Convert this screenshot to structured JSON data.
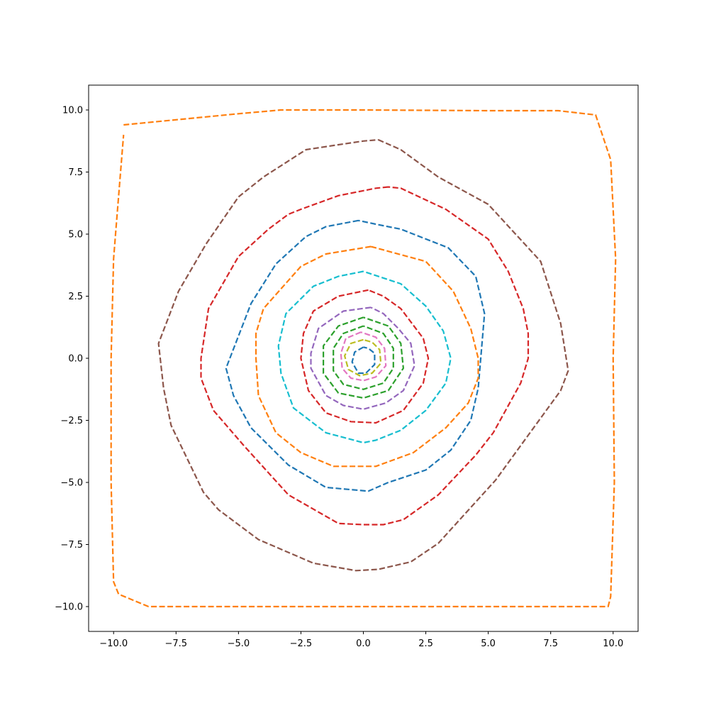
{
  "chart_data": {
    "type": "line",
    "title": "",
    "xlabel": "",
    "ylabel": "",
    "xlim": [
      -11,
      11
    ],
    "ylim": [
      -11,
      11
    ],
    "grid": false,
    "legend": "none",
    "line_style": "dashed",
    "x_ticks": [
      {
        "value": -10,
        "label": "−10.0"
      },
      {
        "value": -7.5,
        "label": "−7.5"
      },
      {
        "value": -5,
        "label": "−5.0"
      },
      {
        "value": -2.5,
        "label": "−2.5"
      },
      {
        "value": 0,
        "label": "0.0"
      },
      {
        "value": 2.5,
        "label": "2.5"
      },
      {
        "value": 5,
        "label": "5.0"
      },
      {
        "value": 7.5,
        "label": "7.5"
      },
      {
        "value": 10,
        "label": "10.0"
      }
    ],
    "y_ticks": [
      {
        "value": 10,
        "label": "10.0"
      },
      {
        "value": 7.5,
        "label": "7.5"
      },
      {
        "value": 5,
        "label": "5.0"
      },
      {
        "value": 2.5,
        "label": "2.5"
      },
      {
        "value": 0,
        "label": "0.0"
      },
      {
        "value": -2.5,
        "label": "−2.5"
      },
      {
        "value": -5,
        "label": "−5.0"
      },
      {
        "value": -7.5,
        "label": "−7.5"
      },
      {
        "value": -10,
        "label": "−10.0"
      }
    ],
    "series": [
      {
        "color": "#ff7f0e",
        "points": [
          [
            -9.6,
            9.4
          ],
          [
            -5,
            9.85
          ],
          [
            -3.3,
            10
          ],
          [
            0,
            10
          ],
          [
            5,
            9.97
          ],
          [
            7.8,
            9.97
          ],
          [
            9.3,
            9.8
          ],
          [
            9.9,
            8
          ],
          [
            10.1,
            4
          ],
          [
            10,
            0
          ],
          [
            10.05,
            -5
          ],
          [
            9.9,
            -9.6
          ],
          [
            9.8,
            -10
          ],
          [
            5,
            -10
          ],
          [
            0,
            -10
          ],
          [
            -5,
            -10
          ],
          [
            -8.6,
            -10
          ],
          [
            -9.8,
            -9.5
          ],
          [
            -10,
            -9
          ],
          [
            -10.1,
            -5
          ],
          [
            -10.1,
            0
          ],
          [
            -10,
            4
          ],
          [
            -9.9,
            5.3
          ],
          [
            -9.6,
            9
          ]
        ]
      },
      {
        "color": "#8c564b",
        "points": [
          [
            0.6,
            8.8
          ],
          [
            1.5,
            8.4
          ],
          [
            3,
            7.3
          ],
          [
            5,
            6.2
          ],
          [
            7.1,
            3.9
          ],
          [
            7.9,
            1.4
          ],
          [
            8.2,
            -0.5
          ],
          [
            7.9,
            -1.3
          ],
          [
            5.3,
            -4.9
          ],
          [
            3,
            -7.45
          ],
          [
            1.9,
            -8.2
          ],
          [
            0.6,
            -8.5
          ],
          [
            -0.3,
            -8.55
          ],
          [
            -2,
            -8.25
          ],
          [
            -4.2,
            -7.3
          ],
          [
            -5.8,
            -6.1
          ],
          [
            -6.4,
            -5.4
          ],
          [
            -7.7,
            -2.7
          ],
          [
            -8,
            -1.2
          ],
          [
            -8.2,
            0.6
          ],
          [
            -7.4,
            2.7
          ],
          [
            -6.3,
            4.6
          ],
          [
            -5,
            6.5
          ],
          [
            -4,
            7.3
          ],
          [
            -2.3,
            8.4
          ],
          [
            -1,
            8.6
          ],
          [
            0,
            8.75
          ],
          [
            0.6,
            8.8
          ]
        ]
      },
      {
        "color": "#d62728",
        "points": [
          [
            1,
            6.9
          ],
          [
            0.5,
            6.85
          ],
          [
            -1,
            6.55
          ],
          [
            -2.5,
            6
          ],
          [
            -3,
            5.8
          ],
          [
            -3.8,
            5.2
          ],
          [
            -5,
            4.1
          ],
          [
            -6.2,
            2
          ],
          [
            -6.5,
            0
          ],
          [
            -6.5,
            -0.8
          ],
          [
            -6,
            -2.1
          ],
          [
            -4.8,
            -3.5
          ],
          [
            -3,
            -5.5
          ],
          [
            -1,
            -6.65
          ],
          [
            0,
            -6.7
          ],
          [
            0.8,
            -6.7
          ],
          [
            1.6,
            -6.5
          ],
          [
            3,
            -5.5
          ],
          [
            4.5,
            -3.9
          ],
          [
            5.2,
            -3
          ],
          [
            6.3,
            -1
          ],
          [
            6.6,
            0
          ],
          [
            6.6,
            1
          ],
          [
            6.4,
            2
          ],
          [
            5.8,
            3.5
          ],
          [
            5,
            4.8
          ],
          [
            3.3,
            6
          ],
          [
            1.5,
            6.85
          ],
          [
            1,
            6.9
          ]
        ]
      },
      {
        "color": "#1f77b4",
        "points": [
          [
            -0.2,
            5.55
          ],
          [
            -1.5,
            5.3
          ],
          [
            -2.3,
            4.9
          ],
          [
            -3.5,
            3.8
          ],
          [
            -4.5,
            2.2
          ],
          [
            -5.5,
            -0.4
          ],
          [
            -5.2,
            -1.5
          ],
          [
            -4.5,
            -2.8
          ],
          [
            -3,
            -4.3
          ],
          [
            -1.5,
            -5.2
          ],
          [
            0.2,
            -5.35
          ],
          [
            1,
            -5
          ],
          [
            2.5,
            -4.5
          ],
          [
            3.5,
            -3.7
          ],
          [
            4.3,
            -2.5
          ],
          [
            4.6,
            -1.2
          ],
          [
            4.85,
            1.8
          ],
          [
            4.5,
            3.3
          ],
          [
            3.4,
            4.45
          ],
          [
            1.5,
            5.2
          ],
          [
            0.5,
            5.4
          ],
          [
            -0.2,
            5.55
          ]
        ]
      },
      {
        "color": "#ff7f0e",
        "points": [
          [
            0.3,
            4.5
          ],
          [
            -1.5,
            4.2
          ],
          [
            -2.5,
            3.7
          ],
          [
            -4,
            2
          ],
          [
            -4.3,
            1
          ],
          [
            -4.3,
            0
          ],
          [
            -4.2,
            -1.5
          ],
          [
            -3.5,
            -3
          ],
          [
            -2.5,
            -3.8
          ],
          [
            -1.2,
            -4.35
          ],
          [
            0.5,
            -4.35
          ],
          [
            2,
            -3.8
          ],
          [
            3.3,
            -2.8
          ],
          [
            4.2,
            -1.8
          ],
          [
            4.6,
            -0.8
          ],
          [
            4.6,
            0
          ],
          [
            4.3,
            1.2
          ],
          [
            3.6,
            2.7
          ],
          [
            2.5,
            3.9
          ],
          [
            0.3,
            4.5
          ]
        ]
      },
      {
        "color": "#17becf",
        "points": [
          [
            0,
            3.5
          ],
          [
            -1,
            3.3
          ],
          [
            -2,
            2.9
          ],
          [
            -3.1,
            1.8
          ],
          [
            -3.4,
            0.5
          ],
          [
            -3.3,
            -0.6
          ],
          [
            -2.8,
            -2
          ],
          [
            -1.5,
            -3
          ],
          [
            0,
            -3.4
          ],
          [
            0.5,
            -3.3
          ],
          [
            1.5,
            -2.9
          ],
          [
            2.5,
            -2.1
          ],
          [
            3.3,
            -1
          ],
          [
            3.5,
            0
          ],
          [
            3.2,
            1.1
          ],
          [
            2.5,
            2.1
          ],
          [
            1.5,
            3
          ],
          [
            0,
            3.5
          ]
        ]
      },
      {
        "color": "#d62728",
        "points": [
          [
            0.2,
            2.75
          ],
          [
            -1,
            2.5
          ],
          [
            -2,
            1.9
          ],
          [
            -2.4,
            1
          ],
          [
            -2.5,
            0
          ],
          [
            -2.2,
            -1.3
          ],
          [
            -1.5,
            -2.2
          ],
          [
            -0.5,
            -2.55
          ],
          [
            0.5,
            -2.6
          ],
          [
            1.6,
            -2.1
          ],
          [
            2.4,
            -1
          ],
          [
            2.6,
            0
          ],
          [
            2.4,
            0.8
          ],
          [
            1.5,
            2
          ],
          [
            0.8,
            2.5
          ],
          [
            0.2,
            2.75
          ]
        ]
      },
      {
        "color": "#9467bd",
        "points": [
          [
            0.3,
            2.05
          ],
          [
            -0.8,
            1.9
          ],
          [
            -1.8,
            1.2
          ],
          [
            -2.1,
            0.2
          ],
          [
            -2.1,
            -0.4
          ],
          [
            -1.5,
            -1.5
          ],
          [
            -0.8,
            -1.9
          ],
          [
            0,
            -2.05
          ],
          [
            0.9,
            -1.8
          ],
          [
            1.6,
            -1.3
          ],
          [
            2.05,
            -0.3
          ],
          [
            1.9,
            0.6
          ],
          [
            1.4,
            1.2
          ],
          [
            0.8,
            1.8
          ],
          [
            0.3,
            2.05
          ]
        ]
      },
      {
        "color": "#2ca02c",
        "points": [
          [
            0,
            1.65
          ],
          [
            -1,
            1.3
          ],
          [
            -1.6,
            0.5
          ],
          [
            -1.6,
            -0.6
          ],
          [
            -1,
            -1.4
          ],
          [
            0,
            -1.6
          ],
          [
            1,
            -1.3
          ],
          [
            1.6,
            -0.4
          ],
          [
            1.5,
            0.6
          ],
          [
            1,
            1.3
          ],
          [
            0,
            1.65
          ]
        ]
      },
      {
        "color": "#2ca02c",
        "points": [
          [
            0,
            1.3
          ],
          [
            -0.8,
            1
          ],
          [
            -1.2,
            0.4
          ],
          [
            -1.2,
            -0.5
          ],
          [
            -0.8,
            -1.05
          ],
          [
            0,
            -1.25
          ],
          [
            0.8,
            -1
          ],
          [
            1.2,
            -0.4
          ],
          [
            1.2,
            0.4
          ],
          [
            0.8,
            1
          ],
          [
            0,
            1.3
          ]
        ]
      },
      {
        "color": "#e377c2",
        "points": [
          [
            -0.1,
            1.05
          ],
          [
            -0.7,
            0.8
          ],
          [
            -0.9,
            0.2
          ],
          [
            -0.85,
            -0.4
          ],
          [
            -0.5,
            -0.8
          ],
          [
            0,
            -0.9
          ],
          [
            0.5,
            -0.75
          ],
          [
            0.9,
            -0.3
          ],
          [
            0.85,
            0.4
          ],
          [
            0.5,
            0.85
          ],
          [
            -0.1,
            1.05
          ]
        ]
      },
      {
        "color": "#bcbd22",
        "points": [
          [
            0,
            0.75
          ],
          [
            -0.5,
            0.6
          ],
          [
            -0.75,
            0.1
          ],
          [
            -0.6,
            -0.45
          ],
          [
            -0.15,
            -0.7
          ],
          [
            0.35,
            -0.6
          ],
          [
            0.7,
            -0.2
          ],
          [
            0.65,
            0.35
          ],
          [
            0.35,
            0.65
          ],
          [
            0,
            0.75
          ]
        ]
      },
      {
        "color": "#1f77b4",
        "points": [
          [
            0,
            0.45
          ],
          [
            -0.35,
            0.25
          ],
          [
            -0.45,
            -0.15
          ],
          [
            -0.2,
            -0.6
          ],
          [
            0.1,
            -0.6
          ],
          [
            0.45,
            -0.25
          ],
          [
            0.45,
            0.2
          ],
          [
            0.2,
            0.4
          ],
          [
            0,
            0.45
          ]
        ]
      }
    ]
  }
}
